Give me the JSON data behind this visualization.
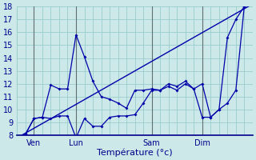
{
  "xlabel": "Température (°c)",
  "ylim": [
    8,
    18
  ],
  "xlim": [
    0,
    28
  ],
  "yticks": [
    8,
    9,
    10,
    11,
    12,
    13,
    14,
    15,
    16,
    17,
    18
  ],
  "xtick_labels": [
    "Ven",
    "Lun",
    "Sam",
    "Dim"
  ],
  "xtick_pos": [
    2,
    7,
    16,
    22
  ],
  "vline_pos": [
    2,
    7,
    16,
    22
  ],
  "background_color": "#cce8e8",
  "grid_color": "#99cccc",
  "line_color": "#0000aa",
  "trend_x": [
    0,
    28
  ],
  "trend_y": [
    7.8,
    18.2
  ],
  "max_x": [
    0,
    1,
    2,
    3,
    4,
    5,
    6,
    7,
    8,
    9,
    10,
    11,
    12,
    13,
    14,
    15,
    16,
    17,
    18,
    19,
    20,
    21,
    22,
    23,
    24,
    25,
    26,
    27
  ],
  "max_y": [
    7.8,
    8.1,
    9.3,
    9.4,
    11.9,
    11.6,
    11.6,
    15.8,
    14.1,
    12.2,
    11.0,
    10.8,
    10.5,
    10.1,
    11.5,
    11.5,
    11.6,
    11.5,
    12.0,
    11.8,
    12.2,
    11.6,
    12.0,
    9.4,
    10.0,
    15.6,
    17.0,
    18.0
  ],
  "min_x": [
    0,
    1,
    2,
    3,
    4,
    5,
    6,
    7,
    8,
    9,
    10,
    11,
    12,
    13,
    14,
    15,
    16,
    17,
    18,
    19,
    20,
    21,
    22,
    23,
    24,
    25,
    26,
    27
  ],
  "min_y": [
    7.8,
    8.1,
    9.3,
    9.4,
    9.3,
    9.5,
    9.5,
    7.8,
    9.3,
    8.7,
    8.7,
    9.4,
    9.5,
    9.5,
    9.6,
    10.5,
    11.5,
    11.5,
    11.8,
    11.5,
    12.0,
    11.6,
    9.4,
    9.4,
    10.0,
    10.5,
    11.5,
    18.0
  ]
}
